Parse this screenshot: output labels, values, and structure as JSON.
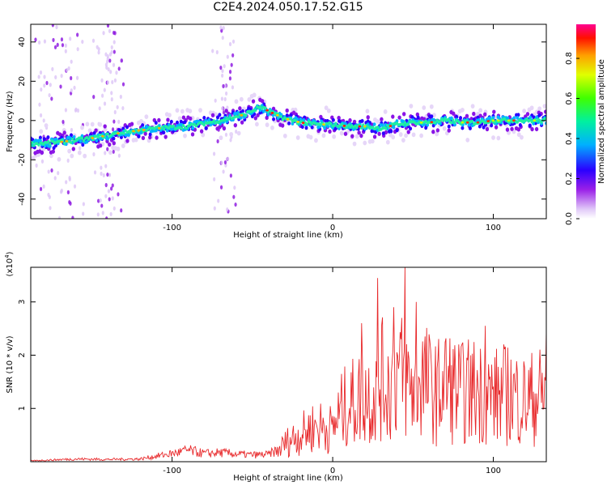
{
  "title": "C2E4.2024.050.17.52.G15",
  "chart_data": [
    {
      "type": "heatmap",
      "title": "C2E4.2024.050.17.52.G15",
      "xlabel": "Height of straight line (km)",
      "ylabel": "Frequency (Hz)",
      "xlim": [
        -188,
        133
      ],
      "ylim": [
        -50,
        49
      ],
      "xticks": [
        -100,
        0,
        100
      ],
      "yticks": [
        -40,
        -20,
        0,
        20,
        40
      ],
      "colorbar": {
        "label": "Normalized spectral amplitude",
        "range": [
          0.0,
          0.97
        ],
        "ticks": [
          "0.0",
          "0.2",
          "0.4",
          "0.6",
          "0.8"
        ],
        "colormap": [
          "#e8d8f8",
          "#7a00e0",
          "#0000ff",
          "#00c8ff",
          "#00ff60",
          "#c8ff00",
          "#ffd000",
          "#ff6000",
          "#ff0000",
          "#ff00a0"
        ]
      },
      "ridge": {
        "x": [
          -188,
          -170,
          -150,
          -130,
          -110,
          -90,
          -70,
          -55,
          -45,
          -38,
          -30,
          -20,
          -10,
          0,
          10,
          20,
          30,
          40,
          50,
          60,
          70,
          80,
          90,
          100,
          110,
          120,
          133
        ],
        "y": [
          -12,
          -11,
          -9,
          -6,
          -4,
          -3,
          0,
          3,
          7,
          4,
          1,
          -1,
          -2,
          -2,
          -3,
          -3,
          -4,
          -2,
          -1,
          -1,
          0,
          -1,
          -1,
          0,
          0,
          0,
          0
        ]
      }
    },
    {
      "type": "line",
      "xlabel": "Height of straight line (km)",
      "ylabel": "SNR (10 * v/v)",
      "yscale_label": "(x10",
      "yscale_exp": "4",
      "yscale_close": ")",
      "xlim": [
        -188,
        133
      ],
      "ylim": [
        0,
        3.65
      ],
      "xticks": [
        -100,
        0,
        100
      ],
      "yticks": [
        1,
        2,
        3
      ],
      "line_color": "#e8292b",
      "series": [
        {
          "x": [
            -188,
            -160,
            -140,
            -120,
            -110,
            -100,
            -90,
            -80,
            -70,
            -60,
            -50,
            -40,
            -35,
            -30,
            -25,
            -20,
            -15,
            -10,
            -5,
            0,
            5,
            10,
            15,
            20,
            25,
            30,
            35,
            40,
            45,
            50,
            55,
            60,
            65,
            70,
            80,
            90,
            100,
            110,
            120,
            133
          ],
          "values": [
            0.02,
            0.06,
            0.05,
            0.06,
            0.12,
            0.18,
            0.25,
            0.18,
            0.2,
            0.17,
            0.15,
            0.16,
            0.25,
            0.5,
            0.65,
            0.75,
            0.9,
            1.0,
            0.95,
            0.9,
            1.4,
            1.6,
            1.7,
            1.9,
            1.8,
            2.3,
            2.1,
            2.5,
            2.3,
            2.0,
            2.4,
            2.1,
            1.9,
            2.2,
            1.9,
            2.0,
            1.8,
            1.9,
            1.7,
            1.9
          ]
        }
      ],
      "peaks": [
        {
          "x": 28,
          "y": 3.45
        },
        {
          "x": 45,
          "y": 3.65
        },
        {
          "x": 52,
          "y": 3.0
        },
        {
          "x": 38,
          "y": 2.9
        },
        {
          "x": 95,
          "y": 2.55
        },
        {
          "x": 133,
          "y": 2.45
        },
        {
          "x": 18,
          "y": 2.6
        }
      ]
    }
  ]
}
